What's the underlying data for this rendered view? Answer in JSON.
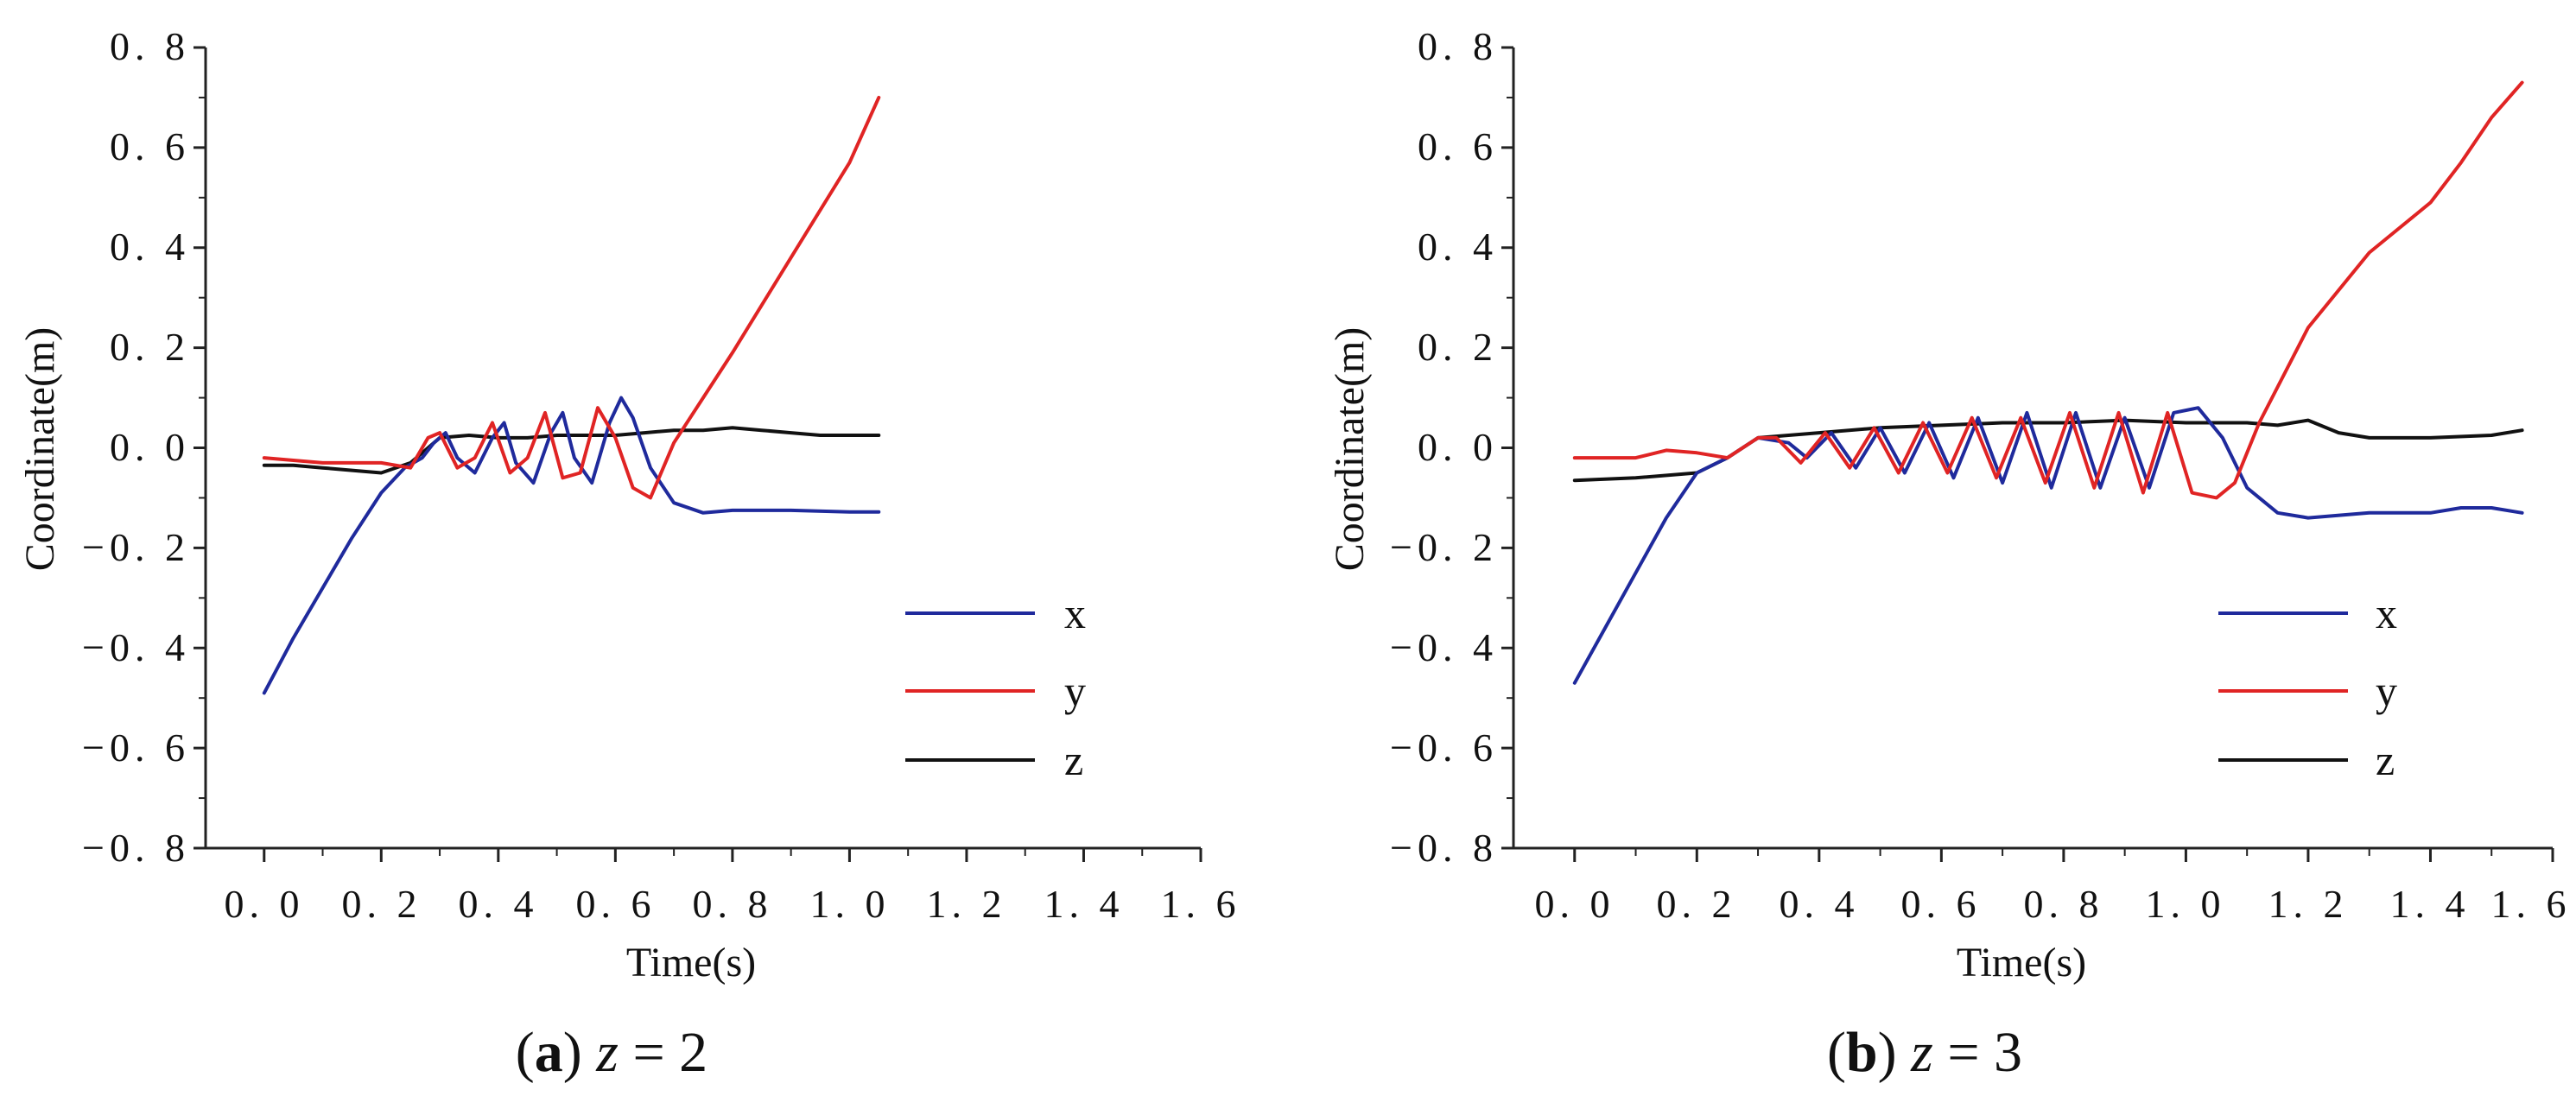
{
  "chart_data": [
    {
      "type": "line",
      "caption": {
        "prefix": "(",
        "letter": "a",
        "suffix": ")",
        "var": "z",
        "eq": "= 2"
      },
      "xlabel": "Time(s)",
      "ylabel": "Coordinate(m)",
      "xlim": [
        -0.1,
        1.6
      ],
      "ylim": [
        -0.8,
        0.8
      ],
      "xticks": [
        0.0,
        0.2,
        0.4,
        0.6,
        0.8,
        1.0,
        1.2,
        1.4,
        1.6
      ],
      "yticks": [
        -0.8,
        -0.6,
        -0.4,
        -0.2,
        0.0,
        0.2,
        0.4,
        0.6,
        0.8
      ],
      "xtick_labels": [
        "0. 0",
        "0. 2",
        "0. 4",
        "0. 6",
        "0. 8",
        "1. 0",
        "1. 2",
        "1. 4",
        "1. 6"
      ],
      "ytick_labels": [
        "−0. 8",
        "−0. 6",
        "−0. 4",
        "−0. 2",
        "0. 0",
        "0. 2",
        "0. 4",
        "0. 6",
        "0. 8"
      ],
      "legend_position": "bottom-right",
      "series": [
        {
          "name": "x",
          "color": "#1f2a9c",
          "x": [
            0.0,
            0.05,
            0.1,
            0.15,
            0.2,
            0.24,
            0.27,
            0.29,
            0.31,
            0.33,
            0.36,
            0.39,
            0.41,
            0.43,
            0.46,
            0.49,
            0.51,
            0.53,
            0.56,
            0.59,
            0.61,
            0.63,
            0.66,
            0.7,
            0.75,
            0.8,
            0.9,
            1.0,
            1.05
          ],
          "values": [
            -0.49,
            -0.38,
            -0.28,
            -0.18,
            -0.09,
            -0.04,
            -0.02,
            0.01,
            0.03,
            -0.02,
            -0.05,
            0.02,
            0.05,
            -0.03,
            -0.07,
            0.03,
            0.07,
            -0.02,
            -0.07,
            0.05,
            0.1,
            0.06,
            -0.04,
            -0.11,
            -0.13,
            -0.125,
            -0.125,
            -0.128,
            -0.128
          ]
        },
        {
          "name": "y",
          "color": "#e02424",
          "x": [
            0.0,
            0.1,
            0.2,
            0.25,
            0.28,
            0.3,
            0.33,
            0.36,
            0.39,
            0.42,
            0.45,
            0.48,
            0.51,
            0.54,
            0.57,
            0.6,
            0.63,
            0.66,
            0.7,
            0.8,
            0.9,
            1.0,
            1.05
          ],
          "values": [
            -0.02,
            -0.03,
            -0.03,
            -0.04,
            0.02,
            0.03,
            -0.04,
            -0.02,
            0.05,
            -0.05,
            -0.02,
            0.07,
            -0.06,
            -0.05,
            0.08,
            0.02,
            -0.08,
            -0.1,
            0.01,
            0.19,
            0.38,
            0.57,
            0.7
          ]
        },
        {
          "name": "z",
          "color": "#111111",
          "x": [
            0.0,
            0.05,
            0.1,
            0.15,
            0.2,
            0.25,
            0.3,
            0.35,
            0.4,
            0.45,
            0.5,
            0.55,
            0.6,
            0.65,
            0.7,
            0.75,
            0.8,
            0.85,
            0.9,
            0.95,
            1.0,
            1.05
          ],
          "values": [
            -0.035,
            -0.035,
            -0.04,
            -0.045,
            -0.05,
            -0.03,
            0.02,
            0.025,
            0.02,
            0.02,
            0.025,
            0.025,
            0.025,
            0.03,
            0.035,
            0.035,
            0.04,
            0.035,
            0.03,
            0.025,
            0.025,
            0.025
          ]
        }
      ]
    },
    {
      "type": "line",
      "caption": {
        "prefix": "(",
        "letter": "b",
        "suffix": ")",
        "var": "z",
        "eq": "= 3"
      },
      "xlabel": "Time(s)",
      "ylabel": "Coordinate(m)",
      "xlim": [
        -0.1,
        1.6
      ],
      "ylim": [
        -0.8,
        0.8
      ],
      "xticks": [
        0.0,
        0.2,
        0.4,
        0.6,
        0.8,
        1.0,
        1.2,
        1.4,
        1.6
      ],
      "yticks": [
        -0.8,
        -0.6,
        -0.4,
        -0.2,
        0.0,
        0.2,
        0.4,
        0.6,
        0.8
      ],
      "xtick_labels": [
        "0. 0",
        "0. 2",
        "0. 4",
        "0. 6",
        "0. 8",
        "1. 0",
        "1. 2",
        "1. 4",
        "1. 6"
      ],
      "ytick_labels": [
        "−0. 8",
        "−0. 6",
        "−0. 4",
        "−0. 2",
        "0. 0",
        "0. 2",
        "0. 4",
        "0. 6",
        "0. 8"
      ],
      "legend_position": "bottom-right",
      "series": [
        {
          "name": "x",
          "color": "#1f2a9c",
          "x": [
            0.0,
            0.05,
            0.1,
            0.15,
            0.2,
            0.25,
            0.3,
            0.35,
            0.38,
            0.42,
            0.46,
            0.5,
            0.54,
            0.58,
            0.62,
            0.66,
            0.7,
            0.74,
            0.78,
            0.82,
            0.86,
            0.9,
            0.94,
            0.98,
            1.02,
            1.06,
            1.1,
            1.15,
            1.2,
            1.3,
            1.4,
            1.45,
            1.5,
            1.55
          ],
          "values": [
            -0.47,
            -0.36,
            -0.25,
            -0.14,
            -0.05,
            -0.02,
            0.02,
            0.01,
            -0.02,
            0.03,
            -0.04,
            0.04,
            -0.05,
            0.05,
            -0.06,
            0.06,
            -0.07,
            0.07,
            -0.08,
            0.07,
            -0.08,
            0.06,
            -0.08,
            0.07,
            0.08,
            0.02,
            -0.08,
            -0.13,
            -0.14,
            -0.13,
            -0.13,
            -0.12,
            -0.12,
            -0.13
          ]
        },
        {
          "name": "y",
          "color": "#e02424",
          "x": [
            0.0,
            0.1,
            0.15,
            0.2,
            0.25,
            0.3,
            0.33,
            0.37,
            0.41,
            0.45,
            0.49,
            0.53,
            0.57,
            0.61,
            0.65,
            0.69,
            0.73,
            0.77,
            0.81,
            0.85,
            0.89,
            0.93,
            0.97,
            1.01,
            1.05,
            1.08,
            1.12,
            1.2,
            1.3,
            1.4,
            1.45,
            1.5,
            1.55
          ],
          "values": [
            -0.02,
            -0.02,
            -0.005,
            -0.01,
            -0.02,
            0.02,
            0.02,
            -0.03,
            0.03,
            -0.04,
            0.04,
            -0.05,
            0.05,
            -0.05,
            0.06,
            -0.06,
            0.06,
            -0.07,
            0.07,
            -0.08,
            0.07,
            -0.09,
            0.07,
            -0.09,
            -0.1,
            -0.07,
            0.05,
            0.24,
            0.39,
            0.49,
            0.57,
            0.66,
            0.73
          ]
        },
        {
          "name": "z",
          "color": "#111111",
          "x": [
            0.0,
            0.1,
            0.2,
            0.25,
            0.3,
            0.4,
            0.5,
            0.6,
            0.7,
            0.8,
            0.9,
            1.0,
            1.1,
            1.15,
            1.2,
            1.25,
            1.3,
            1.4,
            1.5,
            1.55
          ],
          "values": [
            -0.065,
            -0.06,
            -0.05,
            -0.02,
            0.02,
            0.03,
            0.04,
            0.045,
            0.05,
            0.05,
            0.055,
            0.05,
            0.05,
            0.045,
            0.055,
            0.03,
            0.02,
            0.02,
            0.025,
            0.035
          ]
        }
      ]
    }
  ]
}
